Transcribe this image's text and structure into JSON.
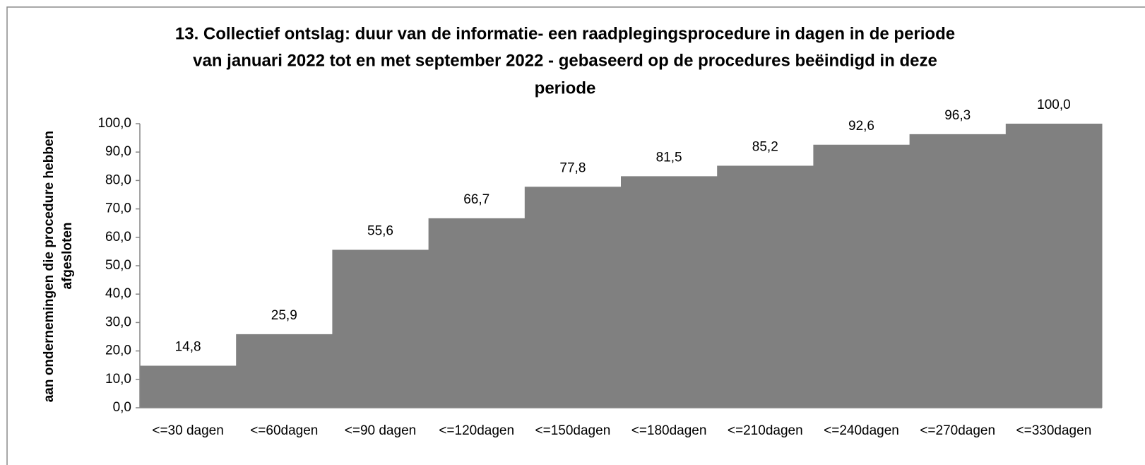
{
  "chart_data": {
    "type": "bar",
    "title": [
      "13. Collectief ontslag: duur van de informatie- een raadplegingsprocedure in dagen in de periode",
      "van januari 2022 tot en met september 2022 - gebaseerd op de procedures beëindigd in deze",
      "periode"
    ],
    "ylabel": [
      "aan ondernemingen die procedure hebben",
      "afgesloten"
    ],
    "categories": [
      "<=30 dagen",
      "<=60dagen",
      "<=90 dagen",
      "<=120dagen",
      "<=150dagen",
      "<=180dagen",
      "<=210dagen",
      "<=240dagen",
      "<=270dagen",
      "<=330dagen"
    ],
    "values": [
      14.8,
      25.9,
      55.6,
      66.7,
      77.8,
      81.5,
      85.2,
      92.6,
      96.3,
      100.0
    ],
    "value_labels": [
      "14,8",
      "25,9",
      "55,6",
      "66,7",
      "77,8",
      "81,5",
      "85,2",
      "92,6",
      "96,3",
      "100,0"
    ],
    "color": "#808080",
    "ylim": [
      0,
      100
    ],
    "yticks": [
      {
        "value": 0,
        "label": "0,0"
      },
      {
        "value": 10,
        "label": "10,0"
      },
      {
        "value": 20,
        "label": "20,0"
      },
      {
        "value": 30,
        "label": "30,0"
      },
      {
        "value": 40,
        "label": "40,0"
      },
      {
        "value": 50,
        "label": "50,0"
      },
      {
        "value": 60,
        "label": "60,0"
      },
      {
        "value": 70,
        "label": "70,0"
      },
      {
        "value": 80,
        "label": "80,0"
      },
      {
        "value": 90,
        "label": "90,0"
      },
      {
        "value": 100,
        "label": "100,0"
      }
    ],
    "grid": false
  }
}
